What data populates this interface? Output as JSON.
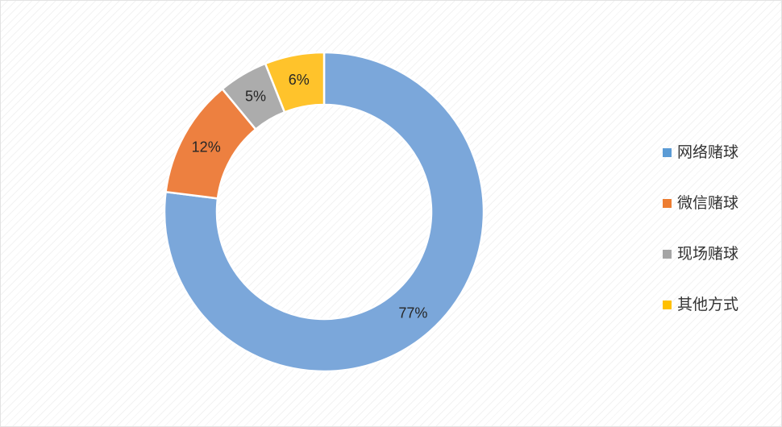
{
  "chart_data": {
    "type": "pie",
    "subtype": "donut",
    "title": "",
    "categories": [
      "网络赌球",
      "微信赌球",
      "现场赌球",
      "其他方式"
    ],
    "values": [
      77,
      12,
      5,
      6
    ],
    "unit": "%",
    "labels": [
      "77%",
      "12%",
      "5%",
      "6%"
    ],
    "colors": [
      "#7BA7DA",
      "#ED8040",
      "#ACACAC",
      "#FFC32B"
    ],
    "legend_colors": [
      "#5B9BD5",
      "#ED7D31",
      "#A5A5A5",
      "#FFC000"
    ],
    "legend_position": "right",
    "start_angle_deg": 0,
    "direction": "clockwise",
    "slice_border_color": "#FFFFFF",
    "label_color": "#262626",
    "background": "#FFFFFF",
    "background_pattern": "diagonal-hatch"
  }
}
